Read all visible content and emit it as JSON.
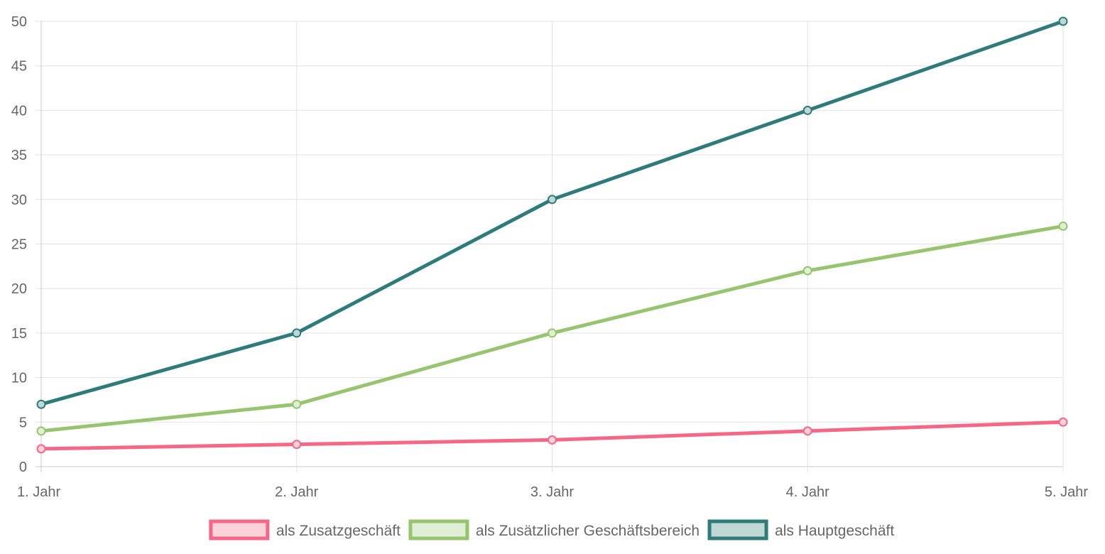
{
  "chart_data": {
    "type": "line",
    "categories": [
      "1. Jahr",
      "2. Jahr",
      "3. Jahr",
      "4. Jahr",
      "5. Jahr"
    ],
    "ylim": [
      0,
      50
    ],
    "yticks": [
      "0",
      "5",
      "10",
      "15",
      "20",
      "25",
      "30",
      "35",
      "40",
      "45",
      "50"
    ],
    "grid": true,
    "legend_position": "bottom",
    "series": [
      {
        "name": "als Zusatzgeschäft",
        "values": [
          2,
          2.5,
          3,
          4,
          5
        ],
        "color": "#f66785",
        "fill": "#fbd1da"
      },
      {
        "name": "als Zusätzlicher Geschäftsbereich",
        "values": [
          4,
          7,
          15,
          22,
          27
        ],
        "color": "#96c46f",
        "fill": "#e1eed6"
      },
      {
        "name": "als Hauptgeschäft",
        "values": [
          7,
          15,
          30,
          40,
          50
        ],
        "color": "#2e7b7a",
        "fill": "#c0d7d6"
      }
    ]
  }
}
